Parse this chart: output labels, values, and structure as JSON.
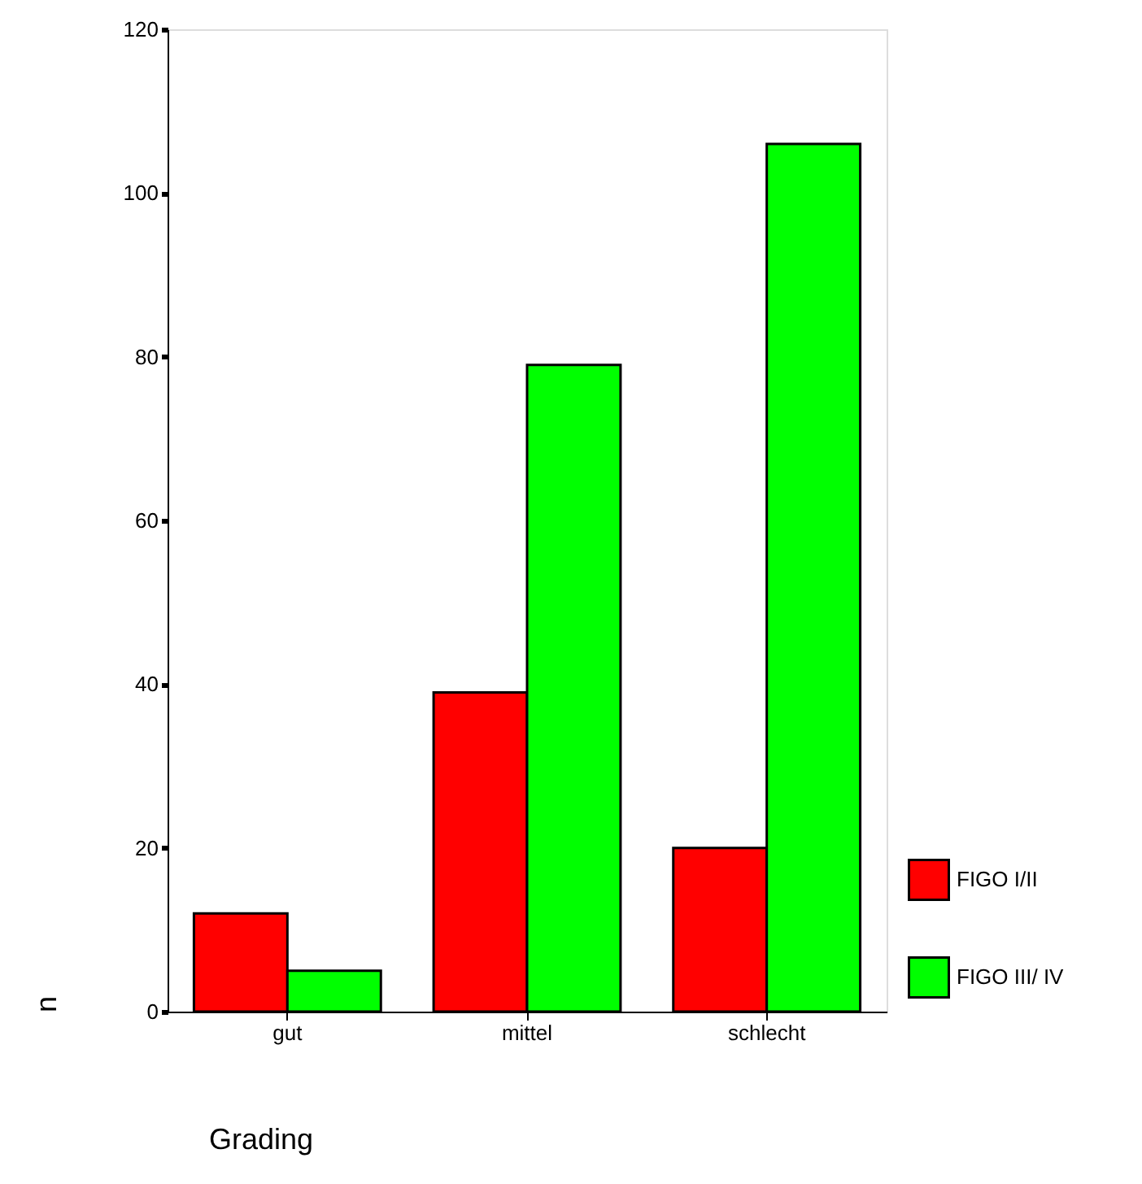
{
  "chart_data": {
    "type": "bar",
    "xlabel": "Grading",
    "ylabel": "n",
    "categories": [
      "gut",
      "mittel",
      "schlecht"
    ],
    "series": [
      {
        "name": "FIGO I/II",
        "color": "#ff0000",
        "values": [
          12,
          39,
          20
        ]
      },
      {
        "name": "FIGO III/ IV",
        "color": "#00ff00",
        "values": [
          5,
          79,
          106
        ]
      }
    ],
    "ylim": [
      0,
      120
    ],
    "yticks": [
      0,
      20,
      40,
      60,
      80,
      100,
      120
    ],
    "grid": false,
    "legend": "bottom right"
  }
}
